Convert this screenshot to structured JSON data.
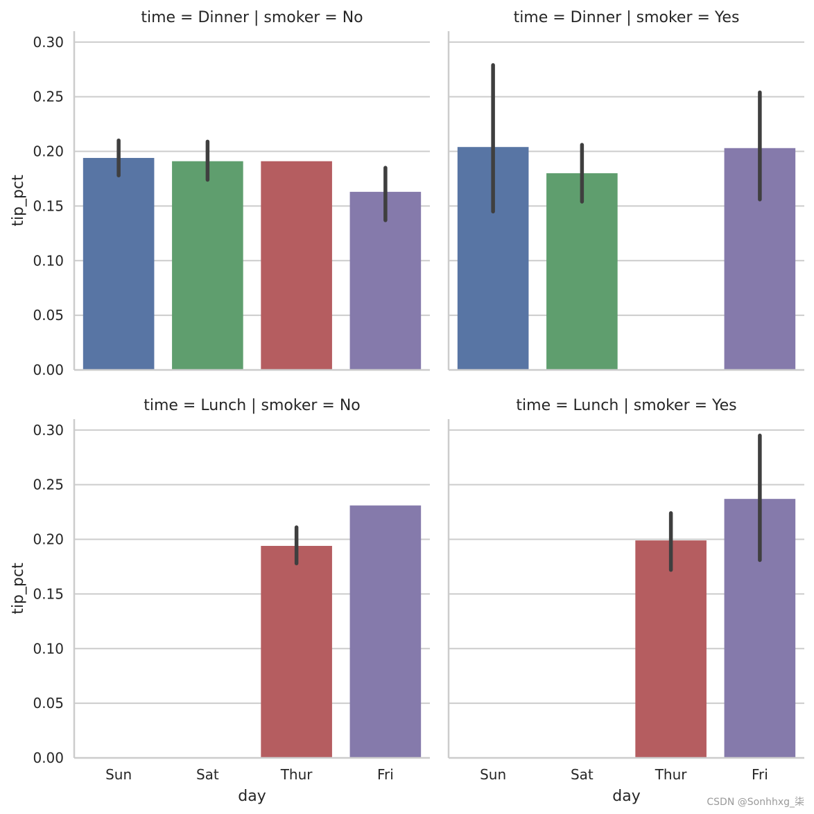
{
  "chart_data": {
    "type": "bar",
    "categories": [
      "Sun",
      "Sat",
      "Thur",
      "Fri"
    ],
    "colors": [
      "#5875a4",
      "#5f9e6e",
      "#b55d60",
      "#857aab"
    ],
    "xlabel": "day",
    "ylabel": "tip_pct",
    "ylim": [
      0,
      0.31
    ],
    "yticks": [
      "0.00",
      "0.05",
      "0.10",
      "0.15",
      "0.20",
      "0.25",
      "0.30"
    ],
    "grid": "horizontal",
    "facets": [
      {
        "title": "time = Dinner | smoker = No",
        "values": [
          0.194,
          0.191,
          0.191,
          0.163
        ],
        "ci": [
          [
            0.178,
            0.21
          ],
          [
            0.174,
            0.209
          ],
          null,
          [
            0.137,
            0.185
          ]
        ]
      },
      {
        "title": "time = Dinner | smoker = Yes",
        "values": [
          0.204,
          0.18,
          null,
          0.203
        ],
        "ci": [
          [
            0.145,
            0.279
          ],
          [
            0.154,
            0.206
          ],
          null,
          [
            0.156,
            0.254
          ]
        ]
      },
      {
        "title": "time = Lunch | smoker = No",
        "values": [
          null,
          null,
          0.194,
          0.231
        ],
        "ci": [
          null,
          null,
          [
            0.178,
            0.211
          ],
          null
        ]
      },
      {
        "title": "time = Lunch | smoker = Yes",
        "values": [
          null,
          null,
          0.199,
          0.237
        ],
        "ci": [
          null,
          null,
          [
            0.172,
            0.224
          ],
          [
            0.181,
            0.295
          ]
        ]
      }
    ]
  },
  "watermark": "CSDN @Sonhhxg_柒"
}
